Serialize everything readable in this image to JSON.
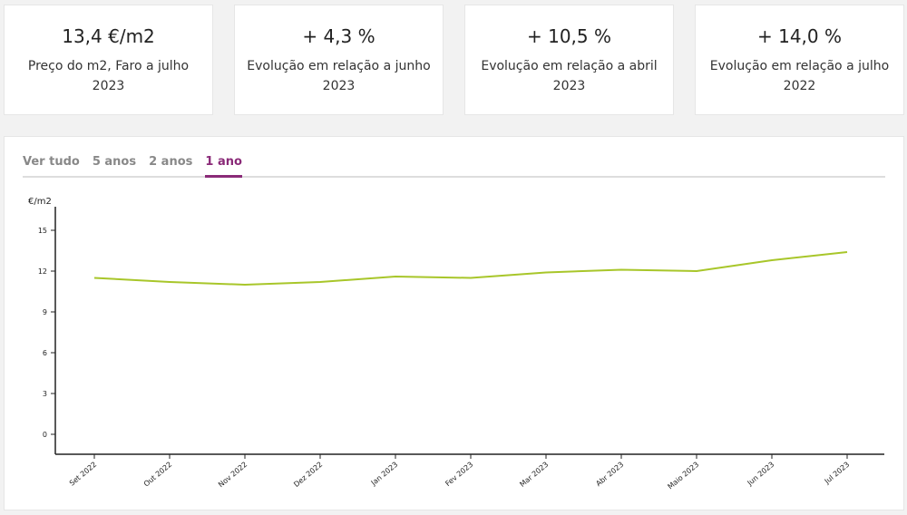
{
  "cards": [
    {
      "value": "13,4 €/m2",
      "label": "Preço do m2, Faro a julho 2023"
    },
    {
      "value": "+ 4,3 %",
      "label": "Evolução em relação a junho 2023"
    },
    {
      "value": "+ 10,5 %",
      "label": "Evolução em relação a abril 2023"
    },
    {
      "value": "+ 14,0 %",
      "label": "Evolução em relação a julho 2022"
    }
  ],
  "tabs": [
    {
      "label": "Ver tudo"
    },
    {
      "label": "5 anos"
    },
    {
      "label": "2 anos"
    },
    {
      "label": "1 ano",
      "active": true
    }
  ],
  "colors": {
    "line": "#a8c62a",
    "accent": "#8a2a78"
  },
  "chart_data": {
    "type": "line",
    "ylabel": "€/m2",
    "ylim": [
      -1.5,
      16.5
    ],
    "yticks": [
      0,
      3,
      6,
      9,
      12,
      15
    ],
    "categories": [
      "Set 2022",
      "Out 2022",
      "Nov 2022",
      "Dez 2022",
      "Jan 2023",
      "Fev 2023",
      "Mar 2023",
      "Abr 2023",
      "Maio 2023",
      "Jun 2023",
      "Jul 2023"
    ],
    "values": [
      11.5,
      11.2,
      11.0,
      11.2,
      11.6,
      11.5,
      11.9,
      12.1,
      12.0,
      12.8,
      13.4
    ],
    "grid": false
  }
}
